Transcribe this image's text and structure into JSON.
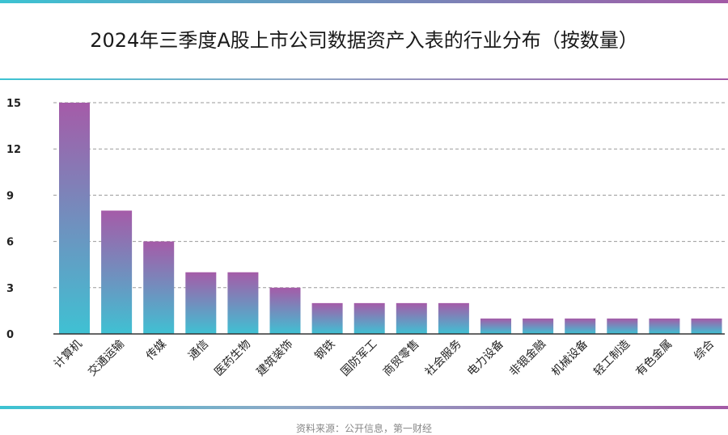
{
  "chart_data": {
    "type": "bar",
    "title": "2024年三季度A股上市公司数据资产入表的行业分布（按数量）",
    "categories": [
      "计算机",
      "交通运输",
      "传媒",
      "通信",
      "医药生物",
      "建筑装饰",
      "钢铁",
      "国防军工",
      "商贸零售",
      "社会服务",
      "电力设备",
      "非银金融",
      "机械设备",
      "轻工制造",
      "有色金属",
      "综合"
    ],
    "values": [
      15,
      8,
      6,
      4,
      4,
      3,
      2,
      2,
      2,
      2,
      1,
      1,
      1,
      1,
      1,
      1
    ],
    "ylim": [
      0,
      15
    ],
    "yticks": [
      "0",
      "3",
      "6",
      "9",
      "12",
      "15"
    ],
    "xlabel": "",
    "ylabel": "",
    "grid": true,
    "colors": {
      "bar_top": "#a55ba8",
      "bar_bottom": "#3fc1d3",
      "grid": "#9a9a9a",
      "axis": "#333333"
    }
  },
  "source": "资料来源：公开信息，第一财经"
}
